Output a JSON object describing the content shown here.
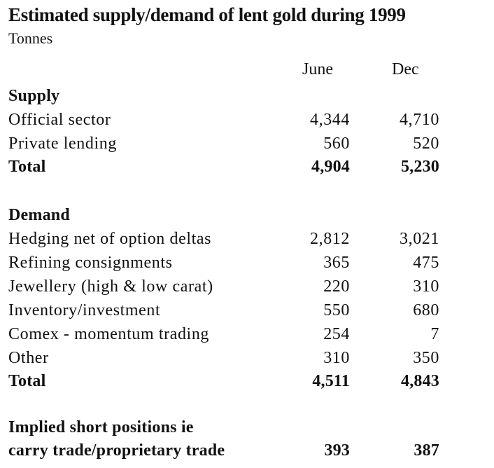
{
  "title": "Estimated supply/demand of lent gold during 1999",
  "unit": "Tonnes",
  "columns": [
    "June",
    "Dec"
  ],
  "supply": {
    "heading": "Supply",
    "rows": [
      {
        "label": "Official sector",
        "june": "4,344",
        "dec": "4,710"
      },
      {
        "label": "Private lending",
        "june": "560",
        "dec": "520"
      }
    ],
    "total": {
      "label": "Total",
      "june": "4,904",
      "dec": "5,230"
    }
  },
  "demand": {
    "heading": "Demand",
    "rows": [
      {
        "label": "Hedging net of option deltas",
        "june": "2,812",
        "dec": "3,021"
      },
      {
        "label": "Refining consignments",
        "june": "365",
        "dec": "475"
      },
      {
        "label": "Jewellery (high & low carat)",
        "june": "220",
        "dec": "310"
      },
      {
        "label": "Inventory/investment",
        "june": "550",
        "dec": "680"
      },
      {
        "label": "Comex - momentum trading",
        "june": "254",
        "dec": "7"
      },
      {
        "label": "Other",
        "june": "310",
        "dec": "350"
      }
    ],
    "total": {
      "label": "Total",
      "june": "4,511",
      "dec": "4,843"
    }
  },
  "implied": {
    "label_line1": "Implied short positions ie",
    "label_line2": "carry trade/proprietary trade",
    "june": "393",
    "dec": "387"
  }
}
